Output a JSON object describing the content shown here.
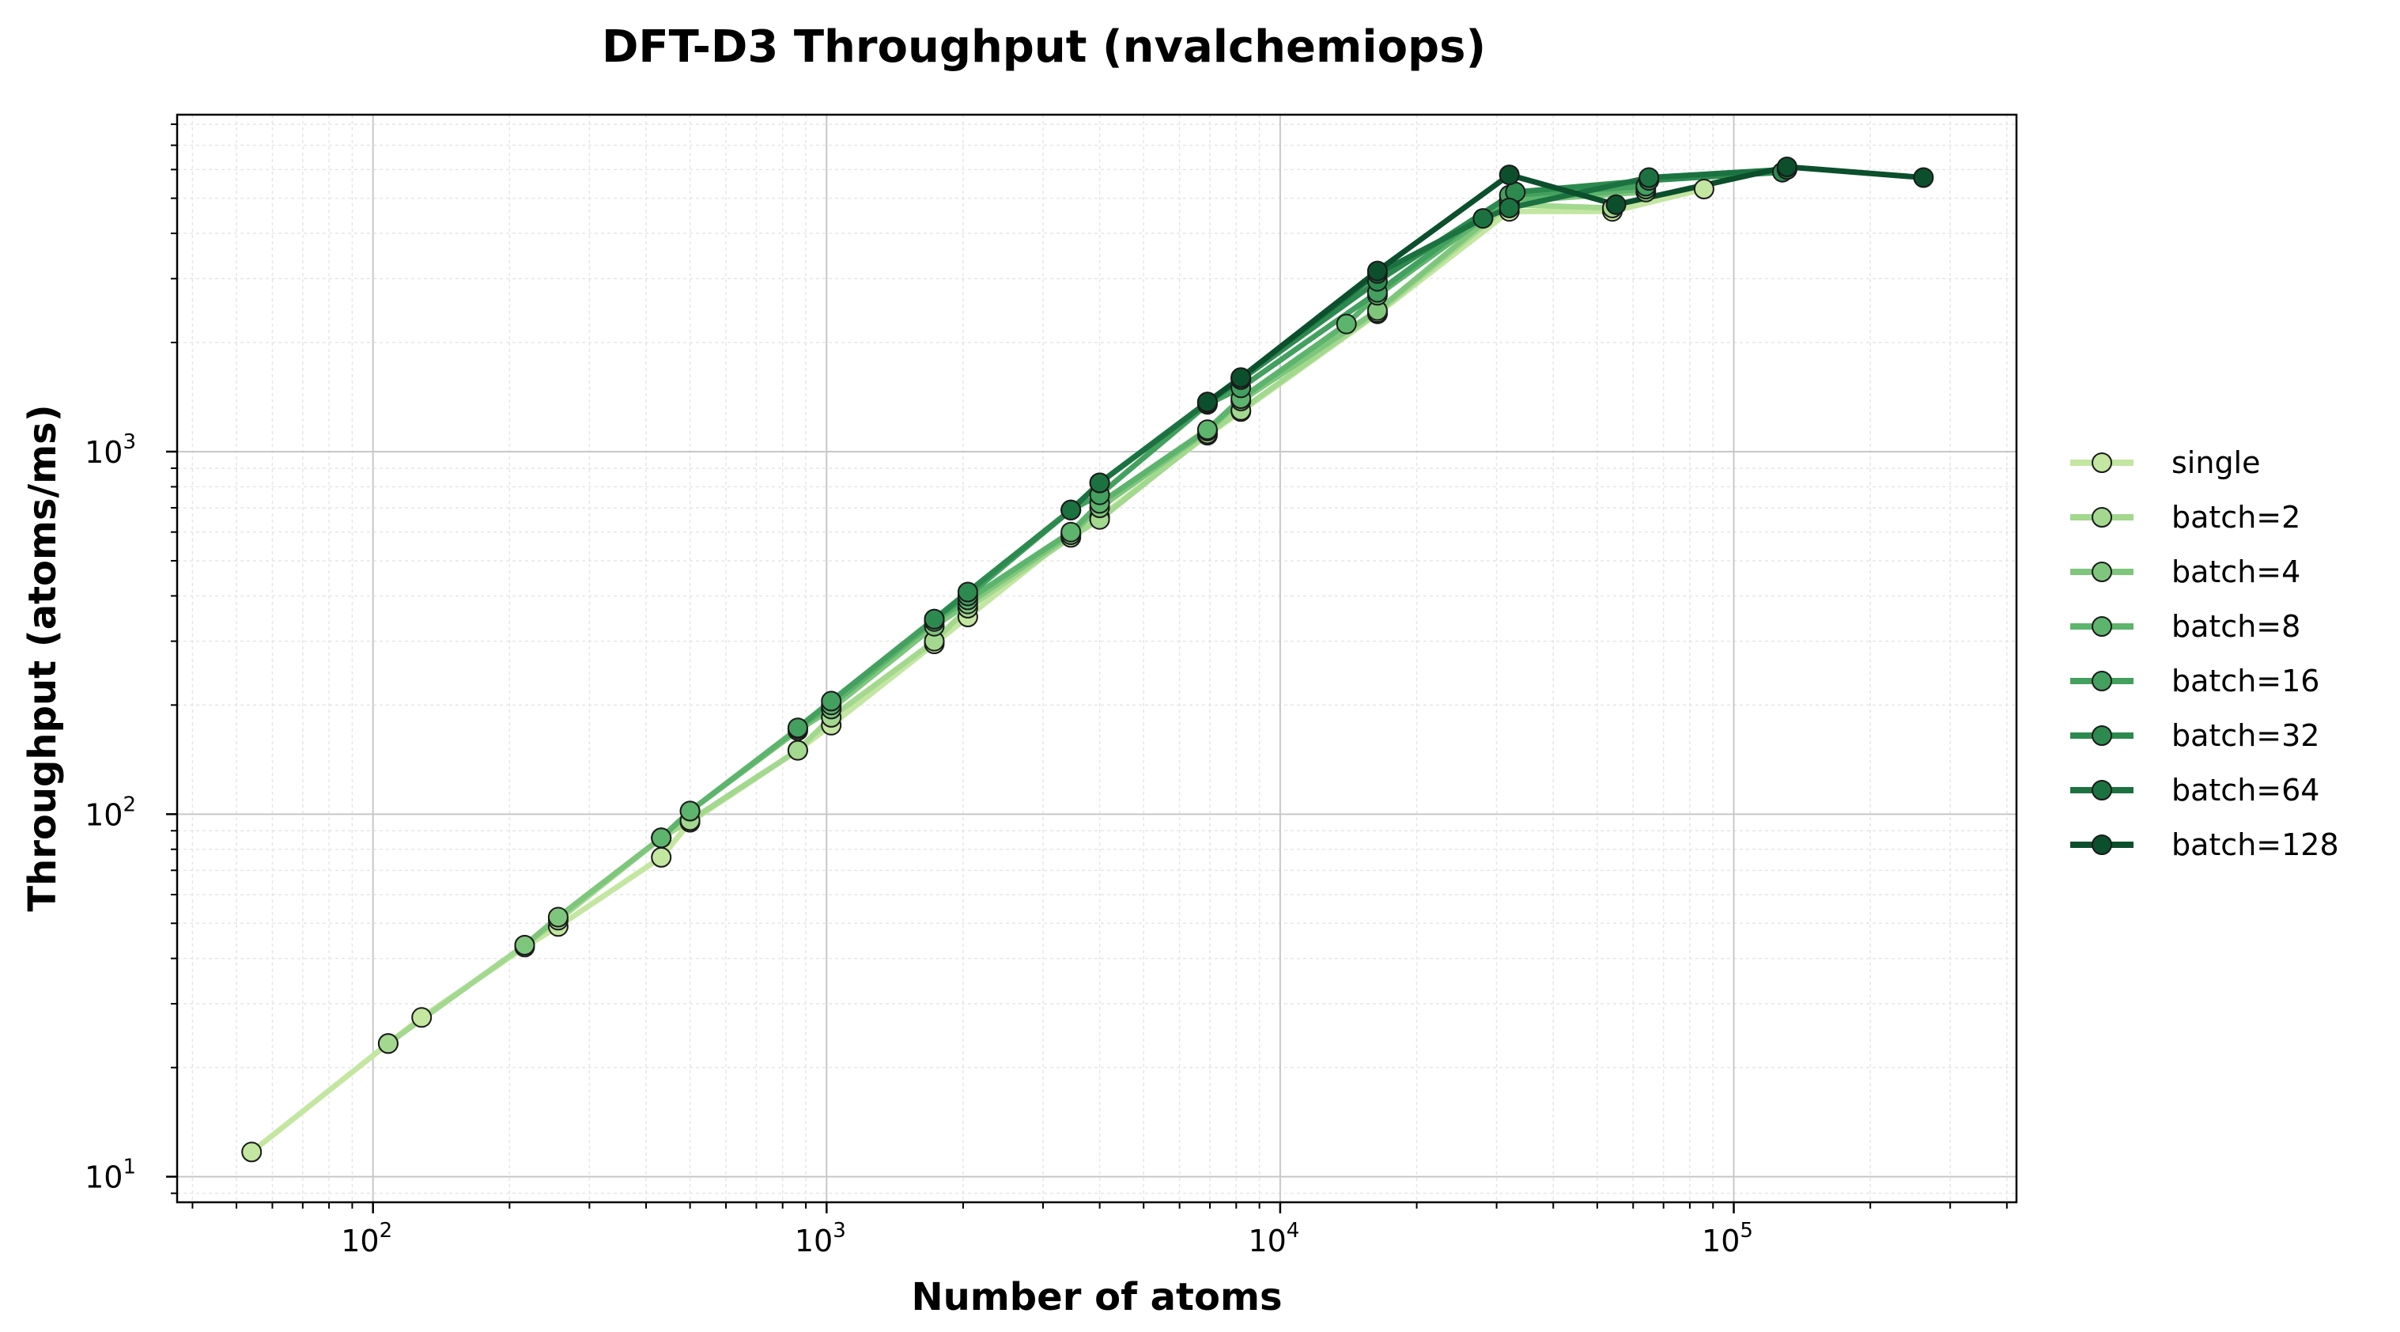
{
  "chart_data": {
    "type": "line",
    "title": "DFT-D3 Throughput (nvalchemiops)",
    "xlabel": "Number of atoms",
    "ylabel": "Throughput (atoms/ms)",
    "xscale": "log",
    "yscale": "log",
    "xlim": [
      37,
      420000
    ],
    "ylim": [
      8.5,
      8500
    ],
    "x_ticks": [
      {
        "value": 100,
        "base": "10",
        "exp": "2"
      },
      {
        "value": 1000,
        "base": "10",
        "exp": "3"
      },
      {
        "value": 10000,
        "base": "10",
        "exp": "4"
      },
      {
        "value": 100000,
        "base": "10",
        "exp": "5"
      }
    ],
    "y_ticks": [
      {
        "value": 10,
        "base": "10",
        "exp": "1"
      },
      {
        "value": 100,
        "base": "10",
        "exp": "2"
      },
      {
        "value": 1000,
        "base": "10",
        "exp": "3"
      }
    ],
    "grid": true,
    "legend_position": "right-outside",
    "series": [
      {
        "name": "single",
        "color": "#c3e6a0",
        "points": [
          [
            54,
            11.7
          ],
          [
            108,
            23.3
          ],
          [
            128,
            27.5
          ],
          [
            216,
            43.0
          ],
          [
            256,
            49.0
          ],
          [
            432,
            76.0
          ],
          [
            500,
            95.0
          ],
          [
            864,
            150.0
          ],
          [
            1024,
            176.0
          ],
          [
            1728,
            295.0
          ],
          [
            2048,
            350.0
          ],
          [
            3456,
            590.0
          ],
          [
            4000,
            660.0
          ],
          [
            6912,
            1110.0
          ],
          [
            8192,
            1290.0
          ],
          [
            16384,
            2400.0
          ],
          [
            32000,
            4600.0
          ],
          [
            54000,
            4600.0
          ],
          [
            86000,
            5300.0
          ]
        ]
      },
      {
        "name": "batch=2",
        "color": "#a3d88f",
        "points": [
          [
            108,
            23.3
          ],
          [
            216,
            43.5
          ],
          [
            256,
            51.0
          ],
          [
            432,
            86.0
          ],
          [
            500,
            96.0
          ],
          [
            864,
            150.0
          ],
          [
            1024,
            185.0
          ],
          [
            1728,
            300.0
          ],
          [
            2048,
            370.0
          ],
          [
            3456,
            580.0
          ],
          [
            4000,
            650.0
          ],
          [
            6912,
            1120.0
          ],
          [
            8192,
            1300.0
          ],
          [
            16384,
            2420.0
          ],
          [
            32000,
            4800.0
          ],
          [
            54000,
            4700.0
          ]
        ]
      },
      {
        "name": "batch=4",
        "color": "#7fc67d",
        "points": [
          [
            216,
            43.5
          ],
          [
            256,
            52.0
          ],
          [
            432,
            86.0
          ],
          [
            500,
            102.0
          ],
          [
            864,
            170.0
          ],
          [
            1024,
            195.0
          ],
          [
            1728,
            330.0
          ],
          [
            2048,
            380.0
          ],
          [
            3456,
            590.0
          ],
          [
            4000,
            700.0
          ],
          [
            6912,
            1140.0
          ],
          [
            8192,
            1380.0
          ],
          [
            16384,
            2450.0
          ],
          [
            32000,
            4900.0
          ],
          [
            64000,
            5200.0
          ]
        ]
      },
      {
        "name": "batch=8",
        "color": "#5db46c",
        "points": [
          [
            432,
            86.0
          ],
          [
            500,
            102.0
          ],
          [
            864,
            172.0
          ],
          [
            1024,
            200.0
          ],
          [
            1728,
            340.0
          ],
          [
            2048,
            390.0
          ],
          [
            3456,
            600.0
          ],
          [
            4000,
            720.0
          ],
          [
            6912,
            1150.0
          ],
          [
            8192,
            1400.0
          ],
          [
            14000,
            2250.0
          ],
          [
            16384,
            2700.0
          ],
          [
            32000,
            4950.0
          ],
          [
            64000,
            5300.0
          ]
        ]
      },
      {
        "name": "batch=16",
        "color": "#43a05f",
        "points": [
          [
            864,
            173.0
          ],
          [
            1024,
            205.0
          ],
          [
            1728,
            345.0
          ],
          [
            2048,
            400.0
          ],
          [
            3456,
            690.0
          ],
          [
            4000,
            760.0
          ],
          [
            6912,
            1350.0
          ],
          [
            8192,
            1500.0
          ],
          [
            16384,
            2750.0
          ],
          [
            32000,
            5100.0
          ],
          [
            64000,
            5400.0
          ]
        ]
      },
      {
        "name": "batch=32",
        "color": "#2d8a4f",
        "points": [
          [
            1728,
            345.0
          ],
          [
            2048,
            410.0
          ],
          [
            3456,
            690.0
          ],
          [
            4000,
            820.0
          ],
          [
            6912,
            1360.0
          ],
          [
            8192,
            1580.0
          ],
          [
            16384,
            2950.0
          ],
          [
            33000,
            5200.0
          ],
          [
            65000,
            5600.0
          ],
          [
            128000,
            5900.0
          ]
        ]
      },
      {
        "name": "batch=64",
        "color": "#1b7240",
        "points": [
          [
            3456,
            690.0
          ],
          [
            4000,
            820.0
          ],
          [
            6912,
            1370.0
          ],
          [
            8192,
            1600.0
          ],
          [
            16384,
            3100.0
          ],
          [
            28000,
            4400.0
          ],
          [
            32000,
            4700.0
          ],
          [
            65000,
            5700.0
          ],
          [
            131000,
            6000.0
          ]
        ]
      },
      {
        "name": "batch=128",
        "color": "#0c4f2c",
        "points": [
          [
            6912,
            1370.0
          ],
          [
            8192,
            1600.0
          ],
          [
            16384,
            3150.0
          ],
          [
            32000,
            5800.0
          ],
          [
            55000,
            4800.0
          ],
          [
            131000,
            6100.0
          ],
          [
            262000,
            5700.0
          ]
        ]
      }
    ]
  }
}
